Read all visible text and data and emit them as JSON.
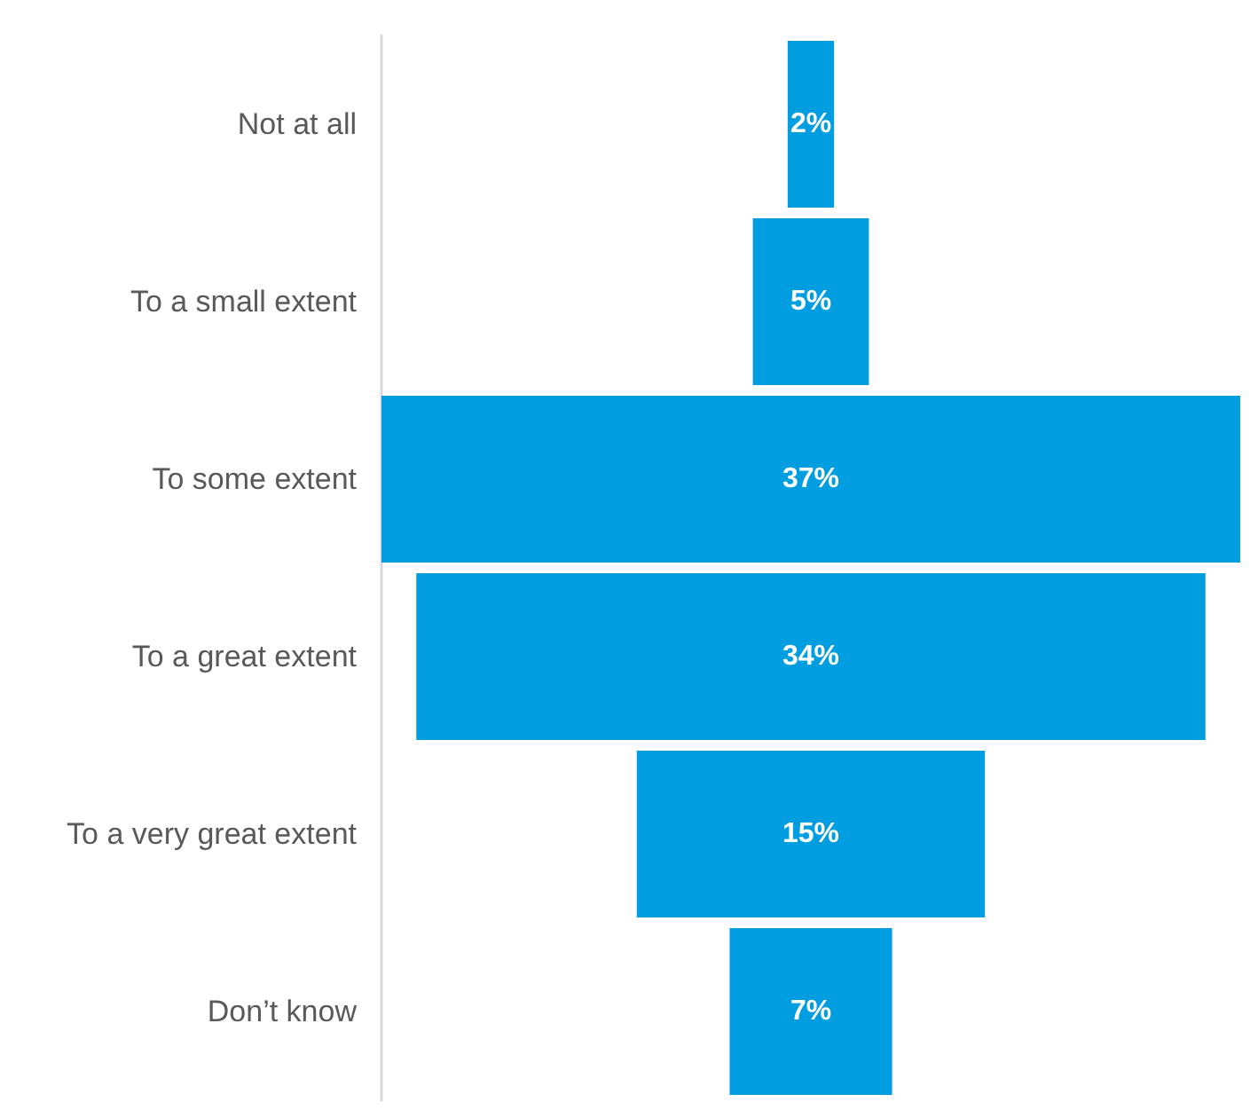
{
  "chart_data": {
    "type": "other",
    "categories": [
      "Not at all",
      "To a small extent",
      "To some extent",
      "To a great extent",
      "To a very great extent",
      "Don’t know"
    ],
    "values": [
      2,
      5,
      37,
      34,
      15,
      7
    ],
    "value_labels": [
      "2%",
      "5%",
      "37%",
      "34%",
      "15%",
      "7%"
    ],
    "color": "#009ee0"
  }
}
